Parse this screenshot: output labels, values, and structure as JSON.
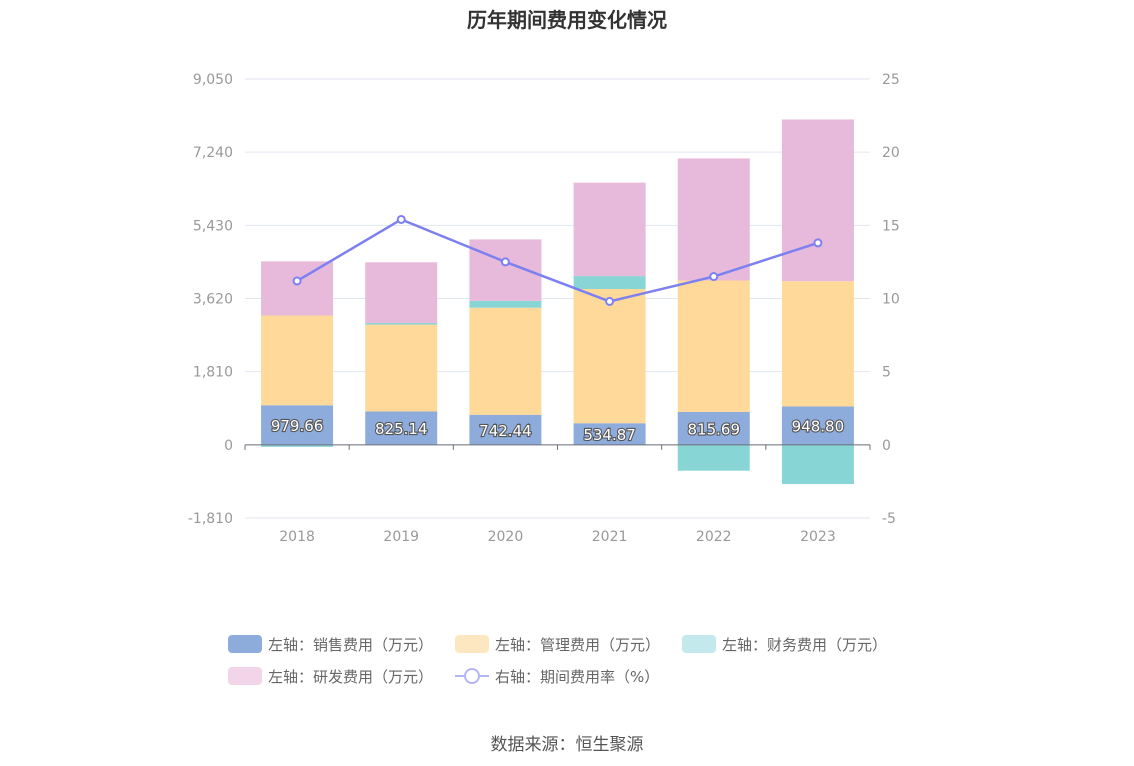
{
  "title": "历年期间费用变化情况",
  "source": "数据来源：恒生聚源",
  "colors": {
    "sales": "#8eacdb",
    "admin": "#ffd99a",
    "finance": "#88d5d6",
    "rnd": "#e7b9da",
    "rate_line": "#7d80f0",
    "grid": "#e0e6f1",
    "axis": "#999999"
  },
  "legend": [
    {
      "label": "左轴：销售费用（万元）",
      "swatch": "#8eacdb",
      "kind": "bar"
    },
    {
      "label": "左轴：管理费用（万元）",
      "swatch": "#fde7c0",
      "kind": "bar"
    },
    {
      "label": "左轴：财务费用（万元）",
      "swatch": "#c3e9ec",
      "kind": "bar"
    },
    {
      "label": "左轴：研发费用（万元）",
      "swatch": "#f2d5e8",
      "kind": "bar"
    },
    {
      "label": "右轴：期间费用率（%）",
      "swatch": "#b3b5f7",
      "kind": "line"
    }
  ],
  "chart_data": {
    "type": "bar",
    "stacked": true,
    "categories": [
      "2018",
      "2019",
      "2020",
      "2021",
      "2022",
      "2023"
    ],
    "series": [
      {
        "name": "左轴：销售费用（万元）",
        "axis": "left",
        "values": [
          979.66,
          825.14,
          742.44,
          534.87,
          815.69,
          948.8
        ]
      },
      {
        "name": "左轴：管理费用（万元）",
        "axis": "left",
        "values": [
          2220,
          2150,
          2650,
          3320,
          3250,
          3100
        ]
      },
      {
        "name": "左轴：财务费用（万元）",
        "axis": "left",
        "values": [
          -50,
          40,
          170,
          320,
          -640,
          -970
        ]
      },
      {
        "name": "左轴：研发费用（万元）",
        "axis": "left",
        "values": [
          1340,
          1500,
          1520,
          2310,
          3020,
          4000
        ]
      },
      {
        "name": "右轴：期间费用率（%）",
        "axis": "right",
        "type": "line",
        "values": [
          11.2,
          15.4,
          12.5,
          9.8,
          11.5,
          13.8
        ]
      }
    ],
    "data_labels": [
      "979.66",
      "825.14",
      "742.44",
      "534.87",
      "815.69",
      "948.80"
    ],
    "y_left": {
      "ticks": [
        "9,050",
        "7,240",
        "5,430",
        "3,620",
        "1,810",
        "0",
        "-1,810"
      ],
      "range": [
        -1810,
        9050
      ]
    },
    "y_right": {
      "ticks": [
        "25",
        "20",
        "15",
        "10",
        "5",
        "0",
        "-5"
      ],
      "range": [
        -5,
        25
      ]
    },
    "grid": true,
    "legend_position": "bottom"
  }
}
